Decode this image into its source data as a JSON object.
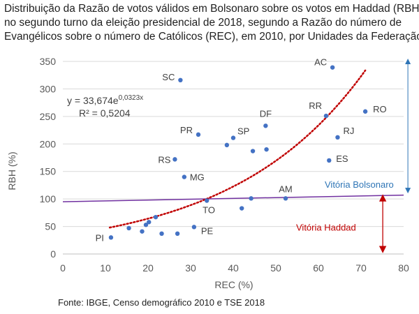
{
  "title_lines": [
    "Distribuição da Razão de votos válidos em Bolsonaro sobre os votos em Haddad (RBH),",
    "no segundo turno da eleição presidencial de 2018, segundo a Razão do número de",
    "Evangélicos sobre o número de Católicos (REC), em 2010, por Unidades da Federação"
  ],
  "source": "Fonte: IBGE, Censo demográfico 2010 e TSE 2018",
  "chart_data": {
    "type": "scatter",
    "title": "Distribuição da Razão de votos válidos em Bolsonaro sobre os votos em Haddad (RBH), no segundo turno da eleição presidencial de 2018, segundo a Razão do número de Evangélicos sobre o número de Católicos (REC), em 2010, por Unidades da Federação",
    "xlabel": "REC (%)",
    "ylabel": "RBH (%)",
    "xlim": [
      0,
      80
    ],
    "ylim": [
      0,
      350
    ],
    "xticks": [
      0,
      10,
      20,
      30,
      40,
      50,
      60,
      70,
      80
    ],
    "yticks": [
      0,
      50,
      100,
      150,
      200,
      250,
      300,
      350
    ],
    "grid": "horizontal",
    "marker_color": "#4472c4",
    "points": [
      {
        "x": 11.3,
        "y": 30,
        "label": "PI"
      },
      {
        "x": 15.5,
        "y": 47,
        "label": ""
      },
      {
        "x": 18.6,
        "y": 41,
        "label": ""
      },
      {
        "x": 19.5,
        "y": 53,
        "label": ""
      },
      {
        "x": 20.2,
        "y": 58,
        "label": ""
      },
      {
        "x": 21.8,
        "y": 67,
        "label": ""
      },
      {
        "x": 23.2,
        "y": 37,
        "label": ""
      },
      {
        "x": 26.9,
        "y": 37,
        "label": ""
      },
      {
        "x": 30.8,
        "y": 49,
        "label": "PE"
      },
      {
        "x": 33.8,
        "y": 97,
        "label": "TO"
      },
      {
        "x": 42.0,
        "y": 83,
        "label": ""
      },
      {
        "x": 44.2,
        "y": 101,
        "label": ""
      },
      {
        "x": 52.3,
        "y": 101,
        "label": "AM"
      },
      {
        "x": 28.5,
        "y": 140,
        "label": "MG"
      },
      {
        "x": 26.3,
        "y": 172,
        "label": "RS"
      },
      {
        "x": 31.8,
        "y": 217,
        "label": "PR"
      },
      {
        "x": 27.6,
        "y": 316,
        "label": "SC"
      },
      {
        "x": 38.5,
        "y": 198,
        "label": ""
      },
      {
        "x": 40.0,
        "y": 211,
        "label": "SP"
      },
      {
        "x": 44.6,
        "y": 187,
        "label": ""
      },
      {
        "x": 47.6,
        "y": 233,
        "label": "DF"
      },
      {
        "x": 47.8,
        "y": 190,
        "label": ""
      },
      {
        "x": 61.8,
        "y": 251,
        "label": "RR"
      },
      {
        "x": 62.5,
        "y": 170,
        "label": "ES"
      },
      {
        "x": 63.3,
        "y": 339,
        "label": "AC"
      },
      {
        "x": 64.5,
        "y": 212,
        "label": "RJ"
      },
      {
        "x": 71.0,
        "y": 259,
        "label": "RO"
      }
    ],
    "trendline": {
      "type": "exponential",
      "a": 33.674,
      "b": 0.0323,
      "x_range": [
        11,
        71
      ],
      "color": "#c00000",
      "equation_text": "y = 33,674e",
      "equation_exponent": "0,0323x",
      "r2_text": "R² = 0,5204"
    },
    "reference_line": {
      "x_range": [
        0,
        80
      ],
      "y_range": [
        95,
        107
      ],
      "color": "#7030a0"
    },
    "annotations": [
      {
        "text": "Vitória Bolsonaro",
        "color": "#2e75b6",
        "arrow_x": 71,
        "arrow_y_range": [
          100,
          350
        ]
      },
      {
        "text": "Vitória Haddad",
        "color": "#c00000",
        "arrow_x": 71,
        "arrow_y_range": [
          8,
          102
        ]
      }
    ]
  }
}
